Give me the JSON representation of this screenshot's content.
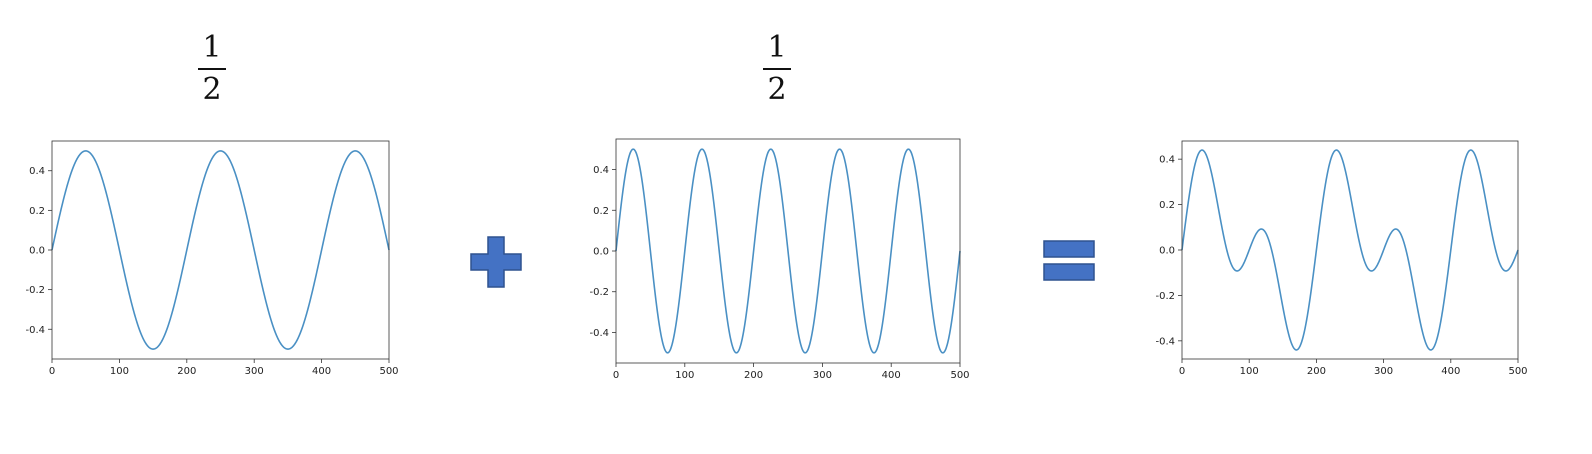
{
  "coefficients": [
    {
      "numerator": "1",
      "denominator": "2"
    },
    {
      "numerator": "1",
      "denominator": "2"
    }
  ],
  "operators": {
    "plus": "plus-icon",
    "equals": "equals-icon"
  },
  "colors": {
    "line": "#4a90c4",
    "operator": "#4472c4",
    "operator_stroke": "#2f528f",
    "axes": "#333333"
  },
  "chart_data": [
    {
      "type": "line",
      "title": "",
      "xlabel": "",
      "ylabel": "",
      "xlim": [
        0,
        500
      ],
      "ylim": [
        -0.55,
        0.55
      ],
      "xticks": [
        0,
        100,
        200,
        300,
        400,
        500
      ],
      "yticks": [
        -0.4,
        -0.2,
        0.0,
        0.2,
        0.4
      ],
      "series": [
        {
          "function": "0.5*sin(2*pi*x/200)",
          "amplitude": 0.5,
          "period": 200,
          "x_range": [
            0,
            500
          ]
        }
      ]
    },
    {
      "type": "line",
      "title": "",
      "xlabel": "",
      "ylabel": "",
      "xlim": [
        0,
        500
      ],
      "ylim": [
        -0.55,
        0.55
      ],
      "xticks": [
        0,
        100,
        200,
        300,
        400,
        500
      ],
      "yticks": [
        -0.4,
        -0.2,
        0.0,
        0.2,
        0.4
      ],
      "series": [
        {
          "function": "0.5*sin(2*pi*x/100)",
          "amplitude": 0.5,
          "period": 100,
          "x_range": [
            0,
            500
          ]
        }
      ]
    },
    {
      "type": "line",
      "title": "",
      "xlabel": "",
      "ylabel": "",
      "xlim": [
        0,
        500
      ],
      "ylim": [
        -0.48,
        0.48
      ],
      "xticks": [
        0,
        100,
        200,
        300,
        400,
        500
      ],
      "yticks": [
        -0.4,
        -0.2,
        0.0,
        0.2,
        0.4
      ],
      "series": [
        {
          "function": "0.5*(0.5*sin(2*pi*x/200)+0.5*sin(2*pi*x/100))",
          "x_range": [
            0,
            500
          ]
        }
      ]
    }
  ]
}
